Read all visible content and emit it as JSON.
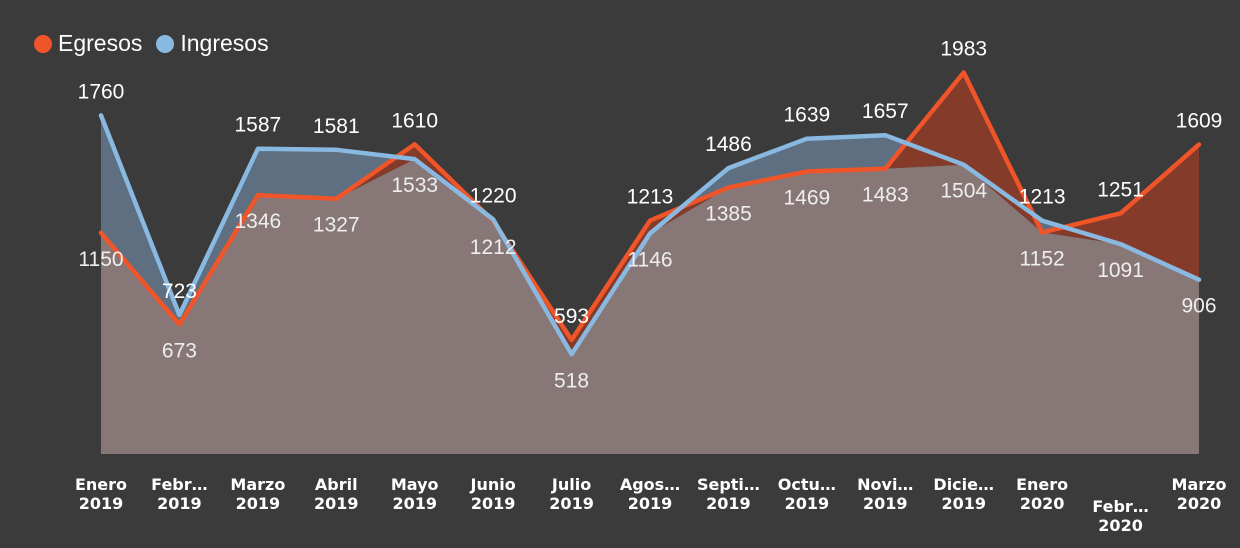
{
  "legend": [
    {
      "label": "Egresos",
      "color": "#f0552a"
    },
    {
      "label": "Ingresos",
      "color": "#89b8e0"
    }
  ],
  "colors": {
    "background": "#3b3b3b",
    "egresos_line": "#f0552a",
    "ingresos_line": "#89b8e0",
    "base_fill": "#887777",
    "ingresos_above_fill": "#5d6f80",
    "egresos_above_fill": "#843b2a"
  },
  "chart_data": {
    "type": "area",
    "categories": [
      [
        "Enero",
        "2019"
      ],
      [
        "Febr…",
        "2019"
      ],
      [
        "Marzo",
        "2019"
      ],
      [
        "Abril",
        "2019"
      ],
      [
        "Mayo",
        "2019"
      ],
      [
        "Junio",
        "2019"
      ],
      [
        "Julio",
        "2019"
      ],
      [
        "Agos…",
        "2019"
      ],
      [
        "Septi…",
        "2019"
      ],
      [
        "Octu…",
        "2019"
      ],
      [
        "Novi…",
        "2019"
      ],
      [
        "Dicie…",
        "2019"
      ],
      [
        "Enero",
        "2020"
      ],
      [
        "Febr…",
        "2020"
      ],
      [
        "Marzo",
        "2020"
      ]
    ],
    "series": [
      {
        "name": "Egresos",
        "color": "#f0552a",
        "values": [
          1150,
          673,
          1346,
          1327,
          1610,
          1212,
          593,
          1213,
          1385,
          1469,
          1483,
          1983,
          1152,
          1251,
          1609
        ],
        "labels": [
          "1150",
          "673",
          "1346",
          "1327",
          "1610",
          "1212",
          "593",
          "1213",
          "1385",
          "1469",
          "1483",
          "1983",
          "1152",
          "1251",
          "1609"
        ]
      },
      {
        "name": "Ingresos",
        "color": "#89b8e0",
        "values": [
          1760,
          723,
          1587,
          1581,
          1533,
          1220,
          518,
          1146,
          1486,
          1639,
          1657,
          1504,
          1213,
          1091,
          906
        ],
        "labels": [
          "1760",
          "723",
          "1587",
          "1581",
          "1533",
          "1220",
          "518",
          "1146",
          "1486",
          "1639",
          "1657",
          "1504",
          "1213",
          "1091",
          "906"
        ]
      }
    ],
    "ylim": [
      0,
      2100
    ],
    "grid": false,
    "legend_position": "top-left"
  }
}
